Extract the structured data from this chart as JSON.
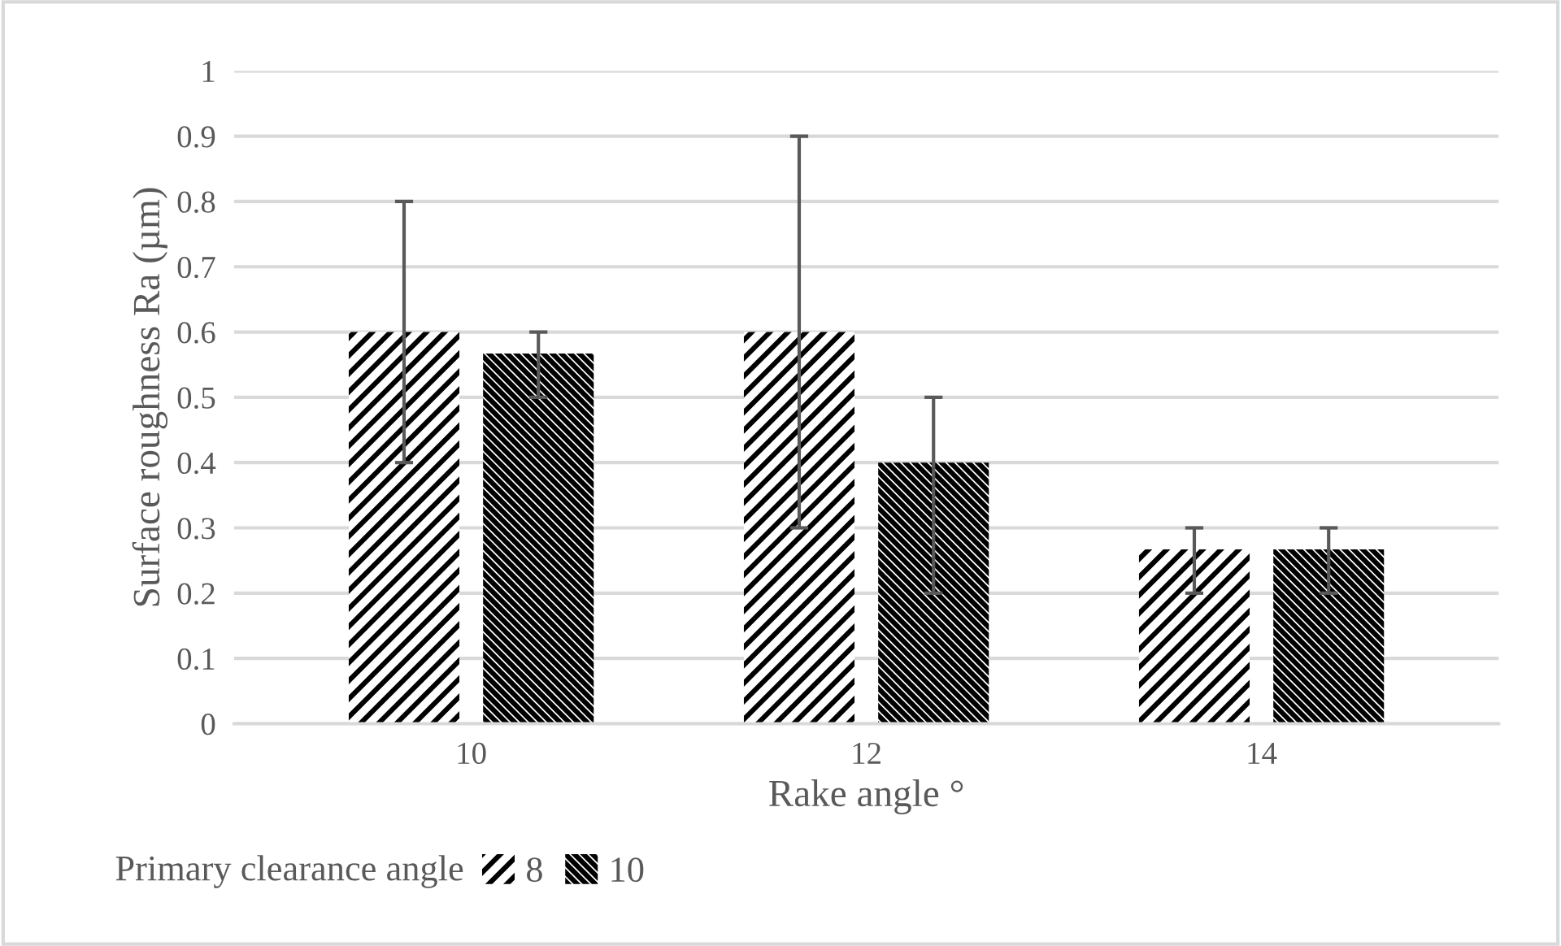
{
  "chart_data": {
    "type": "bar",
    "xlabel": "Rake angle °",
    "ylabel": "Surface roughness Ra (µm)",
    "legend_title": "Primary clearance angle",
    "categories": [
      "10",
      "12",
      "14"
    ],
    "series": [
      {
        "name": "8",
        "color": "#000000",
        "values": [
          0.6,
          0.6,
          0.267
        ],
        "errors": [
          [
            0.4,
            0.8
          ],
          [
            0.3,
            0.9
          ],
          [
            0.2,
            0.3
          ]
        ]
      },
      {
        "name": "10",
        "color": "#000000",
        "values": [
          0.567,
          0.4,
          0.267
        ],
        "errors": [
          [
            0.5,
            0.6
          ],
          [
            0.2,
            0.5
          ],
          [
            0.2,
            0.3
          ]
        ]
      }
    ],
    "ylim": [
      0,
      1
    ],
    "yticks": [
      0,
      0.1,
      0.2,
      0.3,
      0.4,
      0.5,
      0.6,
      0.7,
      0.8,
      0.9,
      1
    ],
    "grid": "y",
    "legend": "bottom"
  }
}
